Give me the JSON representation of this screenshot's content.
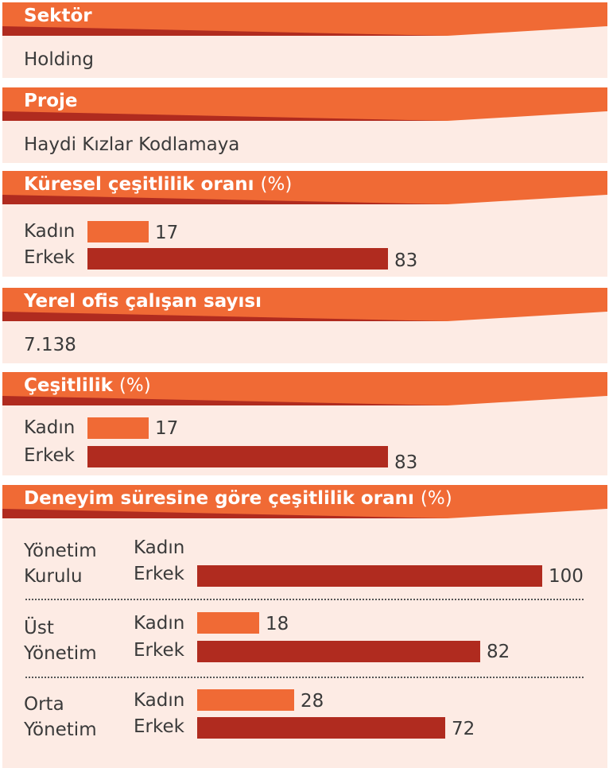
{
  "colors": {
    "header": "#f06a35",
    "panel": "#fdebe4",
    "kadin_bar": "#f06a35",
    "erkek_bar": "#b02b1f",
    "text": "#3a3a3a"
  },
  "sector": {
    "title": "Sektör",
    "value": "Holding"
  },
  "project": {
    "title": "Proje",
    "value": "Haydi Kızlar Kodlamaya"
  },
  "global_diversity": {
    "title": "Küresel çeşitlilik oranı",
    "unit": "(%)"
  },
  "local_staff": {
    "title": "Yerel ofis çalışan sayısı",
    "value": "7.138"
  },
  "diversity": {
    "title": "Çeşitlilik",
    "unit": "(%)"
  },
  "experience": {
    "title": "Deneyim süresine göre çeşitlilik oranı",
    "unit": "(%)"
  },
  "chart_data": [
    {
      "type": "bar",
      "title": "Küresel çeşitlilik oranı (%)",
      "categories": [
        "Kadın",
        "Erkek"
      ],
      "values": [
        17,
        83
      ]
    },
    {
      "type": "bar",
      "title": "Çeşitlilik (%)",
      "categories": [
        "Kadın",
        "Erkek"
      ],
      "values": [
        17,
        83
      ]
    },
    {
      "type": "bar",
      "title": "Deneyim süresine göre çeşitlilik oranı (%)",
      "groups": [
        {
          "label_line1": "Yönetim",
          "label_line2": "Kurulu",
          "categories": [
            "Kadın",
            "Erkek"
          ],
          "values": [
            null,
            100
          ]
        },
        {
          "label_line1": "Üst",
          "label_line2": "Yönetim",
          "categories": [
            "Kadın",
            "Erkek"
          ],
          "values": [
            18,
            82
          ]
        },
        {
          "label_line1": "Orta",
          "label_line2": "Yönetim",
          "categories": [
            "Kadın",
            "Erkek"
          ],
          "values": [
            28,
            72
          ]
        }
      ]
    }
  ]
}
